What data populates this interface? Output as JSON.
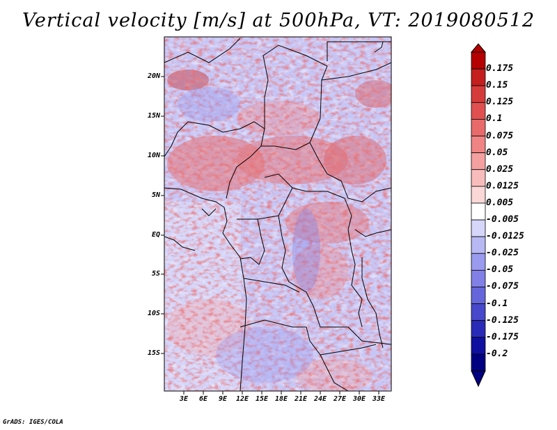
{
  "title": "Vertical velocity [m/s] at 500hPa, VT: 2019080512",
  "credit": "GrADS: IGES/COLA",
  "latitude_labels": [
    "20N",
    "15N",
    "10N",
    "5N",
    "EQ",
    "5S",
    "10S",
    "15S"
  ],
  "longitude_labels": [
    "3E",
    "6E",
    "9E",
    "12E",
    "15E",
    "18E",
    "21E",
    "24E",
    "27E",
    "30E",
    "33E"
  ],
  "colorbar": {
    "labels": [
      "0.175",
      "0.15",
      "0.125",
      "0.1",
      "0.075",
      "0.05",
      "0.025",
      "0.0125",
      "0.005",
      "-0.005",
      "-0.0125",
      "-0.025",
      "-0.05",
      "-0.075",
      "-0.1",
      "-0.125",
      "-0.175",
      "-0.2"
    ],
    "colors": [
      "#b40000",
      "#c41e1e",
      "#d63b3b",
      "#e05050",
      "#e86a6a",
      "#f08484",
      "#f5a0a0",
      "#f9bcbc",
      "#fbd8d8",
      "#ffffff",
      "#d6d6fa",
      "#b8b8f4",
      "#9a9aee",
      "#8080e6",
      "#6666dc",
      "#4848cc",
      "#2a2ab8",
      "#1010a0",
      "#000080"
    ]
  },
  "map": {
    "background_color": "#c6c6f6",
    "lat_range": [
      -20,
      24.5
    ],
    "lon_range": [
      0,
      35
    ],
    "gridline_note": "axis ticks only"
  }
}
